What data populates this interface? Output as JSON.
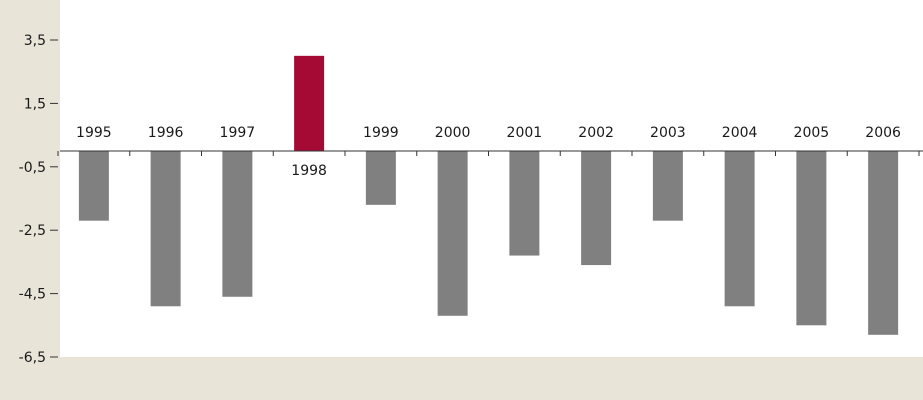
{
  "chart_data": {
    "type": "bar",
    "categories": [
      "1995",
      "1996",
      "1997",
      "1998",
      "1999",
      "2000",
      "2001",
      "2002",
      "2003",
      "2004",
      "2005",
      "2006"
    ],
    "values": [
      -2.2,
      -4.9,
      -4.6,
      3.0,
      -1.7,
      -5.2,
      -3.3,
      -3.6,
      -2.2,
      -4.9,
      -5.5,
      -5.8
    ],
    "highlight_index": 3,
    "y_ticks": [
      "3,5",
      "1,5",
      "-0,5",
      "-2,5",
      "-4,5",
      "-6,5"
    ],
    "y_tick_values": [
      3.5,
      1.5,
      -0.5,
      -2.5,
      -4.5,
      -6.5
    ],
    "ylim": [
      -6.5,
      4.0
    ],
    "title": "",
    "xlabel": "",
    "ylabel": "",
    "grid": false,
    "colors": {
      "background_panel": "#e8e4d8",
      "bar": "#808080",
      "bar_highlight": "#a50a34",
      "axis": "#333333"
    }
  }
}
